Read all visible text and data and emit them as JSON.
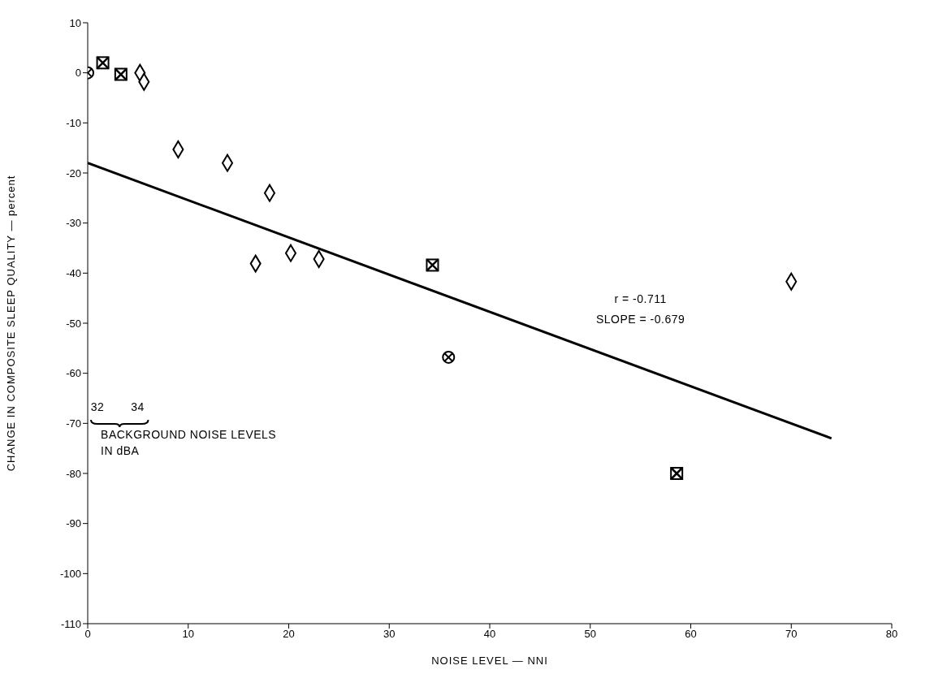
{
  "chart_data": {
    "type": "scatter",
    "xlabel": "NOISE LEVEL — NNI",
    "ylabel": "CHANGE IN COMPOSITE SLEEP QUALITY — percent",
    "xlim": [
      0,
      80
    ],
    "xticks": [
      0,
      10,
      20,
      30,
      40,
      50,
      60,
      70,
      80
    ],
    "ylim": [
      -110,
      10
    ],
    "yticks": [
      10,
      0,
      -10,
      -20,
      -30,
      -40,
      -50,
      -60,
      -70,
      -80,
      -90,
      -100,
      -110
    ],
    "series": [
      {
        "marker": "circle",
        "color": "#000000",
        "x": [
          0,
          35.9
        ],
        "values": [
          0,
          -56.8
        ]
      },
      {
        "marker": "square",
        "color": "#000000",
        "x": [
          1.5,
          3.3,
          34.3,
          58.6
        ],
        "values": [
          2,
          -0.3,
          -38.4,
          -80
        ]
      },
      {
        "marker": "diamond",
        "color": "#000000",
        "x": [
          5.2,
          5.6,
          9,
          13.9,
          18.1,
          16.7,
          20.2,
          23,
          70
        ],
        "values": [
          0,
          -1.8,
          -15.3,
          -18,
          -24,
          -38.1,
          -36,
          -37.2,
          -41.7
        ]
      },
      {
        "type": "line",
        "color": "#000000",
        "x": [
          0,
          74
        ],
        "values": [
          -18,
          -73
        ]
      }
    ],
    "annotations": [
      "r = -0.711",
      "SLOPE = -0.679",
      "32",
      "34",
      "BACKGROUND NOISE LEVELS IN dBA"
    ]
  }
}
